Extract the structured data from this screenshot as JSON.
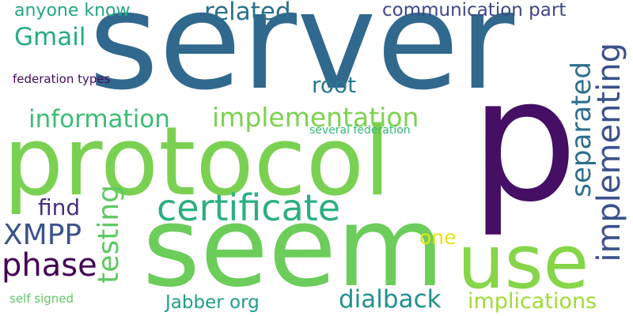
{
  "words": [
    {
      "text": "server",
      "color": "#31688e"
    },
    {
      "text": "p",
      "color": "#440f64"
    },
    {
      "text": "protocol",
      "color": "#7ad151"
    },
    {
      "text": "seem",
      "color": "#6ccd5a"
    },
    {
      "text": "use",
      "color": "#87d549"
    },
    {
      "text": "certificate",
      "color": "#2bb07f"
    },
    {
      "text": "implementation",
      "color": "#7cd250"
    },
    {
      "text": "information",
      "color": "#3dbc74"
    },
    {
      "text": "implementing",
      "color": "#3b518b"
    },
    {
      "text": "separated",
      "color": "#2e6e8e"
    },
    {
      "text": "testing",
      "color": "#5ec962"
    },
    {
      "text": "related",
      "color": "#2d708e"
    },
    {
      "text": "communication part",
      "color": "#3f4788"
    },
    {
      "text": "anyone know",
      "color": "#22a884"
    },
    {
      "text": "Gmail",
      "color": "#25ac82"
    },
    {
      "text": "root",
      "color": "#2a788e"
    },
    {
      "text": "federation types",
      "color": "#46085c"
    },
    {
      "text": "several federation",
      "color": "#35b779"
    },
    {
      "text": "find",
      "color": "#472d7b"
    },
    {
      "text": "XMPP",
      "color": "#3b528b"
    },
    {
      "text": "phase",
      "color": "#440154"
    },
    {
      "text": "one",
      "color": "#e2e418"
    },
    {
      "text": "dialback",
      "color": "#21918c"
    },
    {
      "text": "implications",
      "color": "#a2da37"
    },
    {
      "text": "Jabber org",
      "color": "#1f9e89"
    },
    {
      "text": "self signed",
      "color": "#5ec962"
    }
  ]
}
